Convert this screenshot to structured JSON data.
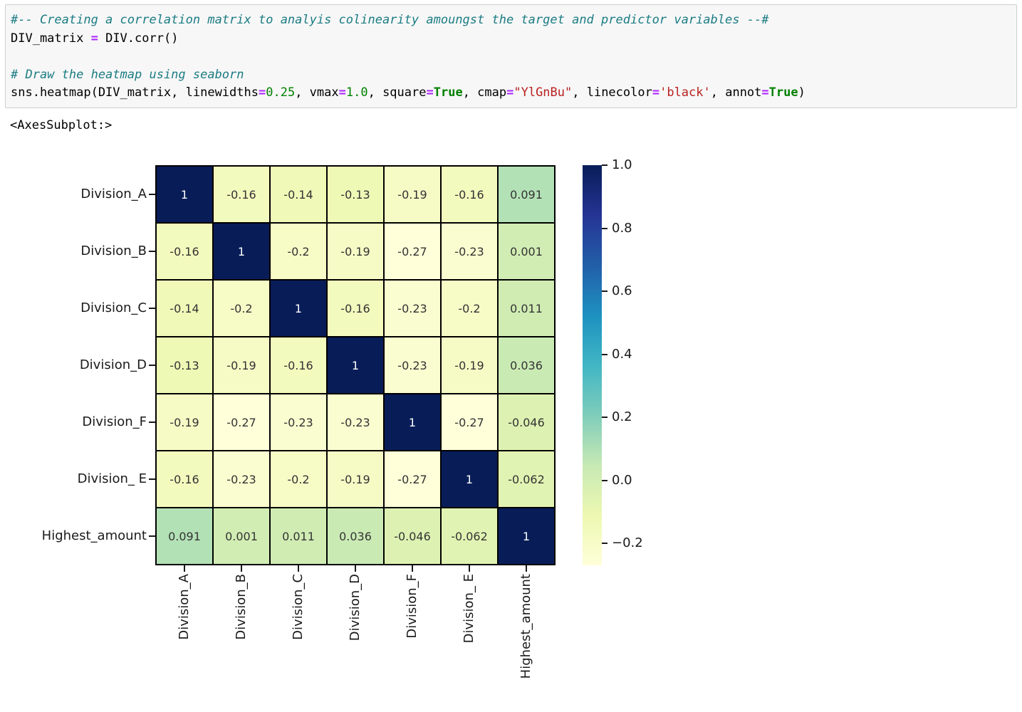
{
  "code": {
    "lines": [
      [
        {
          "c": "com",
          "t": "#-- Creating a correlation matrix to analyis colinearity amoungst the target and predictor variables --#"
        }
      ],
      [
        {
          "c": "pln",
          "t": "DIV_matrix "
        },
        {
          "c": "op",
          "t": "="
        },
        {
          "c": "pln",
          "t": " DIV.corr()"
        }
      ],
      [],
      [
        {
          "c": "com",
          "t": "# Draw the heatmap using seaborn"
        }
      ],
      [
        {
          "c": "pln",
          "t": "sns.heatmap(DIV_matrix, linewidths"
        },
        {
          "c": "op",
          "t": "="
        },
        {
          "c": "num",
          "t": "0.25"
        },
        {
          "c": "pln",
          "t": ", vmax"
        },
        {
          "c": "op",
          "t": "="
        },
        {
          "c": "num",
          "t": "1.0"
        },
        {
          "c": "pln",
          "t": ", square"
        },
        {
          "c": "op",
          "t": "="
        },
        {
          "c": "kw",
          "t": "True"
        },
        {
          "c": "pln",
          "t": ", cmap"
        },
        {
          "c": "op",
          "t": "="
        },
        {
          "c": "str",
          "t": "\"YlGnBu\""
        },
        {
          "c": "pln",
          "t": ", linecolor"
        },
        {
          "c": "op",
          "t": "="
        },
        {
          "c": "str",
          "t": "'black'"
        },
        {
          "c": "pln",
          "t": ", annot"
        },
        {
          "c": "op",
          "t": "="
        },
        {
          "c": "kw",
          "t": "True"
        },
        {
          "c": "pln",
          "t": ")"
        }
      ]
    ]
  },
  "output_text": "<AxesSubplot:>",
  "chart_data": {
    "type": "heatmap",
    "labels": [
      "Division_A",
      "Division_B",
      "Division_C",
      "Division_D",
      "Division_F",
      "Division_ E",
      "Highest_amount"
    ],
    "matrix": [
      [
        1,
        -0.16,
        -0.14,
        -0.13,
        -0.19,
        -0.16,
        0.091
      ],
      [
        -0.16,
        1,
        -0.2,
        -0.19,
        -0.27,
        -0.23,
        0.001
      ],
      [
        -0.14,
        -0.2,
        1,
        -0.16,
        -0.23,
        -0.2,
        0.011
      ],
      [
        -0.13,
        -0.19,
        -0.16,
        1,
        -0.23,
        -0.19,
        0.036
      ],
      [
        -0.19,
        -0.27,
        -0.23,
        -0.23,
        1,
        -0.27,
        -0.046
      ],
      [
        -0.16,
        -0.23,
        -0.2,
        -0.19,
        -0.27,
        1,
        -0.062
      ],
      [
        0.091,
        0.001,
        0.011,
        0.036,
        -0.046,
        -0.062,
        1
      ]
    ],
    "annotations": [
      [
        "1",
        "-0.16",
        "-0.14",
        "-0.13",
        "-0.19",
        "-0.16",
        "0.091"
      ],
      [
        "-0.16",
        "1",
        "-0.2",
        "-0.19",
        "-0.27",
        "-0.23",
        "0.001"
      ],
      [
        "-0.14",
        "-0.2",
        "1",
        "-0.16",
        "-0.23",
        "-0.2",
        "0.011"
      ],
      [
        "-0.13",
        "-0.19",
        "-0.16",
        "1",
        "-0.23",
        "-0.19",
        "0.036"
      ],
      [
        "-0.19",
        "-0.27",
        "-0.23",
        "-0.23",
        "1",
        "-0.27",
        "-0.046"
      ],
      [
        "-0.16",
        "-0.23",
        "-0.2",
        "-0.19",
        "-0.27",
        "1",
        "-0.062"
      ],
      [
        "0.091",
        "0.001",
        "0.011",
        "0.036",
        "-0.046",
        "-0.062",
        "1"
      ]
    ],
    "vmin": -0.27,
    "vmax": 1.0,
    "grid_on": true,
    "line_color": "#000000",
    "colormap": {
      "name": "YlGnBu",
      "stops": [
        "#ffffd9",
        "#edf8b1",
        "#c7e9b4",
        "#7fcdbb",
        "#41b6c4",
        "#1d91c0",
        "#225ea8",
        "#253494",
        "#081d58"
      ]
    },
    "colorbar": {
      "position": "right",
      "ticks": [
        {
          "label": "1.0",
          "value": 1.0
        },
        {
          "label": "0.8",
          "value": 0.8
        },
        {
          "label": "0.6",
          "value": 0.6
        },
        {
          "label": "0.4",
          "value": 0.4
        },
        {
          "label": "0.2",
          "value": 0.2
        },
        {
          "label": "0.0",
          "value": 0.0
        },
        {
          "label": "−0.2",
          "value": -0.2
        }
      ]
    },
    "annot_color_dark": "#333333",
    "annot_color_light": "#ffffff"
  }
}
